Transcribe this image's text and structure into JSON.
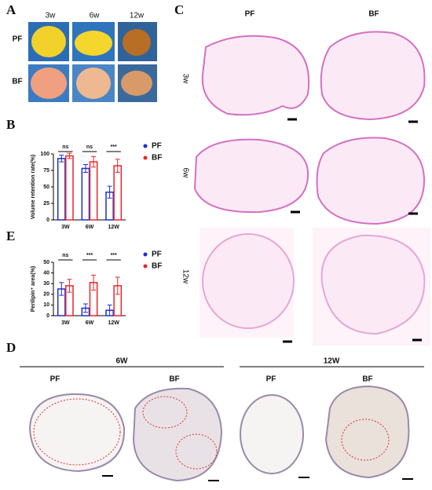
{
  "panel_labels": [
    "A",
    "B",
    "C",
    "D",
    "E"
  ],
  "panel_a": {
    "columns": [
      "3w",
      "6w",
      "12w"
    ],
    "rows": [
      "PF",
      "BF"
    ]
  },
  "panel_c": {
    "columns": [
      "PF",
      "BF"
    ],
    "rows": [
      "3w",
      "6w",
      "12w"
    ]
  },
  "panel_d": {
    "groups": [
      {
        "title": "6W",
        "columns": [
          "PF",
          "BF"
        ]
      },
      {
        "title": "12W",
        "columns": [
          "PF",
          "BF"
        ]
      }
    ]
  },
  "chart_data": [
    {
      "type": "bar",
      "y_label": "Volume retention rate(%)",
      "categories": [
        "3W",
        "6W",
        "12W"
      ],
      "series": [
        {
          "name": "PF",
          "color": "#1a2fd0",
          "values": [
            93,
            78,
            42
          ],
          "errors": [
            5,
            6,
            9
          ]
        },
        {
          "name": "BF",
          "color": "#e8262a",
          "values": [
            97,
            88,
            82
          ],
          "errors": [
            4,
            8,
            10
          ]
        }
      ],
      "significance": [
        "ns",
        "ns",
        "***"
      ],
      "ylim": [
        0,
        100
      ],
      "yticks": [
        0,
        25,
        50,
        75,
        100
      ],
      "legend": "right"
    },
    {
      "type": "bar",
      "y_label": "Perilipin⁺ area(%)",
      "categories": [
        "3W",
        "6W",
        "12W"
      ],
      "series": [
        {
          "name": "PF",
          "color": "#1a2fd0",
          "values": [
            25,
            7,
            5
          ],
          "errors": [
            6,
            4,
            5
          ]
        },
        {
          "name": "BF",
          "color": "#e8262a",
          "values": [
            28,
            31,
            28
          ],
          "errors": [
            6,
            7,
            8
          ]
        }
      ],
      "significance": [
        "ns",
        "***",
        "***"
      ],
      "ylim": [
        0,
        50
      ],
      "yticks": [
        0,
        10,
        20,
        30,
        40,
        50
      ],
      "legend": "right"
    }
  ]
}
